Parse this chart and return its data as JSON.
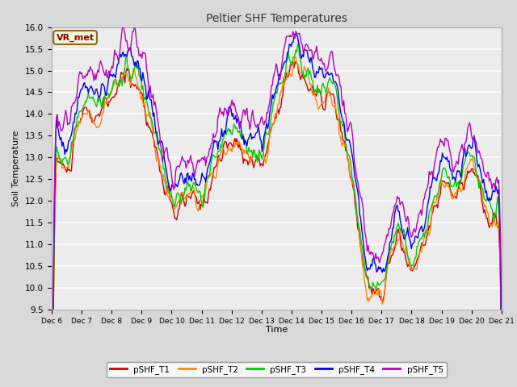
{
  "title": "Peltier SHF Temperatures",
  "xlabel": "Time",
  "ylabel": "Soil Temperature",
  "ylim": [
    9.5,
    16.0
  ],
  "yticks": [
    9.5,
    10.0,
    10.5,
    11.0,
    11.5,
    12.0,
    12.5,
    13.0,
    13.5,
    14.0,
    14.5,
    15.0,
    15.5,
    16.0
  ],
  "x_tick_labels": [
    "Dec 6",
    "Dec 7",
    "Dec 8",
    "Dec 9",
    "Dec 10",
    "Dec 11",
    "Dec 12",
    "Dec 13",
    "Dec 14",
    "Dec 15",
    "Dec 16",
    "Dec 17",
    "Dec 18",
    "Dec 19",
    "Dec 20",
    "Dec 21"
  ],
  "fig_bg_color": "#d8d8d8",
  "plot_bg_color": "#ececec",
  "grid_color": "#ffffff",
  "annotation_text": "VR_met",
  "annotation_color": "#8b0000",
  "annotation_bg": "#f5f5dc",
  "annotation_border": "#8b6914",
  "series": {
    "pSHF_T1": {
      "color": "#cc0000",
      "lw": 1.0
    },
    "pSHF_T2": {
      "color": "#ff8800",
      "lw": 1.0
    },
    "pSHF_T3": {
      "color": "#00cc00",
      "lw": 1.0
    },
    "pSHF_T4": {
      "color": "#0000ee",
      "lw": 1.0
    },
    "pSHF_T5": {
      "color": "#bb00bb",
      "lw": 1.0
    }
  },
  "n_points": 480
}
